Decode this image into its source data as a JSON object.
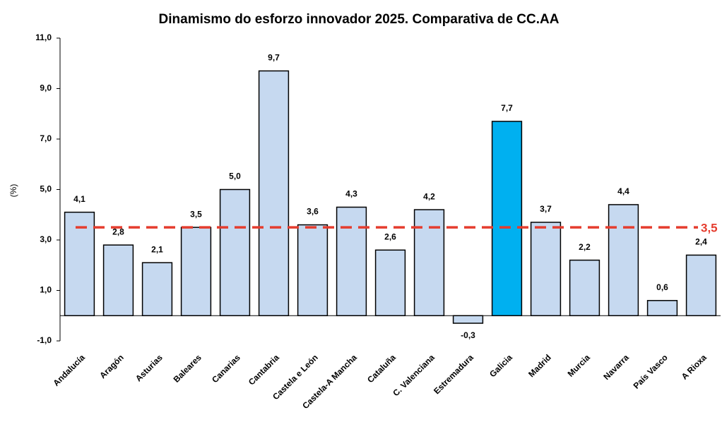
{
  "chart_data": {
    "type": "bar",
    "title": "Dinamismo do esforzo innovador 2025. Comparativa de CC.AA",
    "y_label": "(%)",
    "categories": [
      "Andalucía",
      "Aragón",
      "Asturias",
      "Baleares",
      "Canarias",
      "Cantabria",
      "Castela e León",
      "Castela-A Mancha",
      "Cataluña",
      "C. Valenciana",
      "Estremadura",
      "Galicia",
      "Madrid",
      "Murcia",
      "Navarra",
      "País Vasco",
      "A Rioxa"
    ],
    "values": [
      4.1,
      2.8,
      2.1,
      3.5,
      5.0,
      9.7,
      3.6,
      4.3,
      2.6,
      4.2,
      -0.3,
      7.7,
      3.7,
      2.2,
      4.4,
      0.6,
      2.4
    ],
    "value_labels": [
      "4,1",
      "2,8",
      "2,1",
      "3,5",
      "5,0",
      "9,7",
      "3,6",
      "4,3",
      "2,6",
      "4,2",
      "-0,3",
      "7,7",
      "3,7",
      "2,2",
      "4,4",
      "0,6",
      "2,4"
    ],
    "colors": [
      "#c6d9f0",
      "#c6d9f0",
      "#c6d9f0",
      "#c6d9f0",
      "#c6d9f0",
      "#c6d9f0",
      "#c6d9f0",
      "#c6d9f0",
      "#c6d9f0",
      "#c6d9f0",
      "#c6d9f0",
      "#00b0f0",
      "#c6d9f0",
      "#c6d9f0",
      "#c6d9f0",
      "#c6d9f0",
      "#c6d9f0"
    ],
    "ylim": [
      -1,
      11
    ],
    "yticks": [
      {
        "value": -1,
        "label": "-1,0"
      },
      {
        "value": 1,
        "label": "1,0"
      },
      {
        "value": 3,
        "label": "3,0"
      },
      {
        "value": 5,
        "label": "5,0"
      },
      {
        "value": 7,
        "label": "7,0"
      },
      {
        "value": 9,
        "label": "9,0"
      },
      {
        "value": 11,
        "label": "11,0"
      }
    ],
    "grid": false,
    "reference_line": {
      "value": 3.5,
      "label": "3,5",
      "color": "#e53c2e"
    }
  }
}
